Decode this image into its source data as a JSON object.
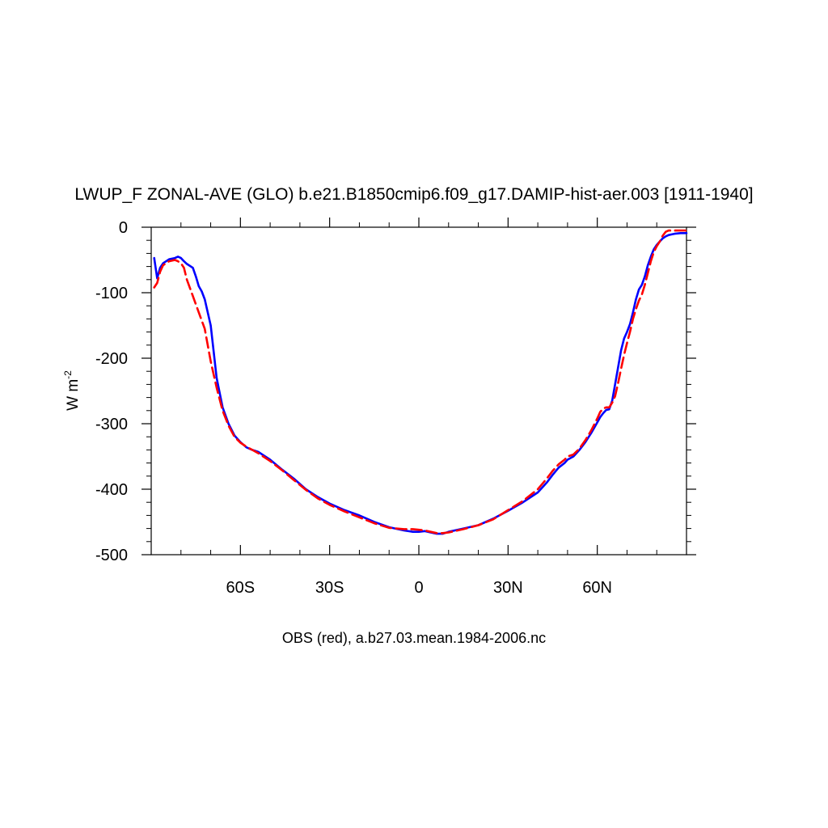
{
  "chart_data": {
    "type": "line",
    "title": "LWUP_F ZONAL-AVE (GLO) b.e21.B1850cmip6.f09_g17.DAMIP-hist-aer.003 [1911-1940]",
    "ylabel": "W m",
    "ylabel_superscript": "-2",
    "footer": "OBS (red), a.b27.03.mean.1984-2006.nc",
    "xlim": [
      -90,
      90
    ],
    "ylim": [
      -500,
      0
    ],
    "x_ticks": [
      {
        "value": -60,
        "label": "60S"
      },
      {
        "value": -30,
        "label": "30S"
      },
      {
        "value": 0,
        "label": "0"
      },
      {
        "value": 30,
        "label": "30N"
      },
      {
        "value": 60,
        "label": "60N"
      }
    ],
    "y_ticks": [
      {
        "value": 0,
        "label": "0"
      },
      {
        "value": -100,
        "label": "-100"
      },
      {
        "value": -200,
        "label": "-200"
      },
      {
        "value": -300,
        "label": "-300"
      },
      {
        "value": -400,
        "label": "-400"
      },
      {
        "value": -500,
        "label": "-500"
      }
    ],
    "grid": false,
    "series": [
      {
        "color": "#0000ff",
        "dash": "solid",
        "x": [
          -89,
          -88,
          -87,
          -86,
          -84,
          -82,
          -81,
          -80,
          -79,
          -78,
          -76,
          -75,
          -74,
          -73,
          -72,
          -70,
          -68,
          -66,
          -64,
          -62,
          -60,
          -58,
          -56,
          -54,
          -50,
          -46,
          -42,
          -38,
          -34,
          -30,
          -25,
          -20,
          -15,
          -10,
          -5,
          -2,
          0,
          2,
          4,
          6,
          8,
          10,
          15,
          20,
          25,
          30,
          35,
          40,
          43,
          45,
          47,
          49,
          50,
          52,
          54,
          56,
          58,
          60,
          61,
          62,
          63,
          64,
          65,
          66,
          67,
          68,
          69,
          70,
          71,
          72,
          73,
          74,
          75,
          76,
          77,
          78,
          79,
          80,
          81,
          82,
          83,
          84,
          85,
          86,
          88,
          90
        ],
        "y": [
          -47,
          -78,
          -62,
          -55,
          -49,
          -47,
          -45,
          -47,
          -52,
          -56,
          -62,
          -75,
          -90,
          -98,
          -110,
          -150,
          -230,
          -275,
          -300,
          -318,
          -328,
          -336,
          -340,
          -343,
          -355,
          -370,
          -384,
          -400,
          -412,
          -422,
          -432,
          -440,
          -450,
          -458,
          -463,
          -465,
          -465,
          -464,
          -466,
          -468,
          -468,
          -465,
          -460,
          -455,
          -445,
          -433,
          -420,
          -405,
          -390,
          -378,
          -367,
          -360,
          -355,
          -350,
          -340,
          -328,
          -314,
          -298,
          -290,
          -284,
          -279,
          -278,
          -265,
          -240,
          -214,
          -188,
          -170,
          -160,
          -148,
          -130,
          -110,
          -95,
          -88,
          -75,
          -58,
          -45,
          -34,
          -27,
          -22,
          -17,
          -14,
          -12,
          -11,
          -10,
          -9,
          -9
        ]
      },
      {
        "color": "#ff0000",
        "dash": "dashed",
        "x": [
          -89,
          -88,
          -87,
          -86,
          -84,
          -82,
          -81,
          -80,
          -79,
          -78,
          -76,
          -74,
          -72,
          -70,
          -68,
          -66,
          -64,
          -62,
          -60,
          -58,
          -56,
          -54,
          -50,
          -46,
          -42,
          -38,
          -34,
          -30,
          -25,
          -20,
          -15,
          -10,
          -5,
          -2,
          0,
          2,
          4,
          6,
          8,
          10,
          15,
          20,
          25,
          30,
          35,
          40,
          43,
          45,
          47,
          49,
          50,
          52,
          54,
          56,
          58,
          60,
          61,
          62,
          63,
          64,
          65,
          66,
          67,
          68,
          69,
          70,
          71,
          72,
          73,
          74,
          75,
          76,
          77,
          78,
          79,
          80,
          81,
          82,
          83,
          84,
          85,
          86,
          88,
          90
        ],
        "y": [
          -92,
          -85,
          -68,
          -58,
          -52,
          -50,
          -52,
          -55,
          -62,
          -80,
          -105,
          -130,
          -155,
          -205,
          -245,
          -280,
          -303,
          -320,
          -329,
          -335,
          -340,
          -345,
          -357,
          -371,
          -386,
          -401,
          -414,
          -424,
          -434,
          -443,
          -452,
          -459,
          -461,
          -461,
          -462,
          -463,
          -465,
          -467,
          -467,
          -466,
          -461,
          -455,
          -446,
          -432,
          -418,
          -400,
          -384,
          -372,
          -362,
          -355,
          -350,
          -347,
          -338,
          -325,
          -310,
          -292,
          -282,
          -277,
          -275,
          -275,
          -268,
          -258,
          -238,
          -216,
          -195,
          -177,
          -160,
          -140,
          -125,
          -112,
          -103,
          -88,
          -70,
          -52,
          -38,
          -29,
          -22,
          -13,
          -7,
          -5,
          -5,
          -5,
          -5,
          -5
        ]
      }
    ]
  }
}
